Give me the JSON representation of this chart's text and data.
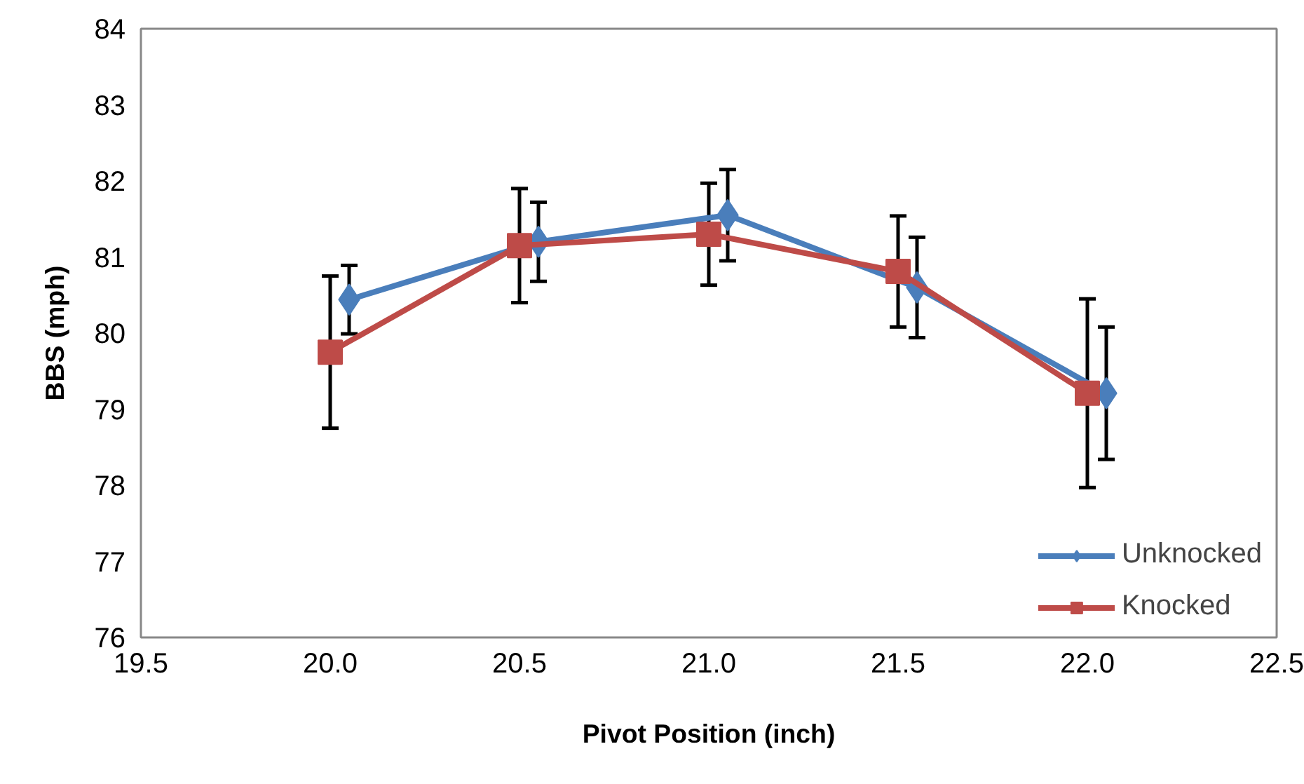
{
  "chart_data": {
    "type": "line",
    "xlabel": "Pivot Position (inch)",
    "ylabel": "BBS (mph)",
    "xlim": [
      19.5,
      22.5
    ],
    "xticks": [
      {
        "value": 19.5,
        "label": "19.5"
      },
      {
        "value": 20,
        "label": "20.0"
      },
      {
        "value": 20.5,
        "label": "20.5"
      },
      {
        "value": 21,
        "label": "21.0"
      },
      {
        "value": 21.5,
        "label": "21.5"
      },
      {
        "value": 22,
        "label": "22.0"
      },
      {
        "value": 22.5,
        "label": "22.5"
      }
    ],
    "ylim": [
      76,
      84
    ],
    "yticks": [
      76,
      77,
      78,
      79,
      80,
      81,
      82,
      83,
      84
    ],
    "grid": false,
    "legend": "bottom right",
    "line_style": "solid",
    "series": [
      {
        "name": "Unknocked",
        "color": "#4a7ebb",
        "marker": "diamond",
        "x": [
          20.05,
          20.55,
          21.05,
          21.55,
          22.05
        ],
        "values": [
          80.44,
          81.2,
          81.55,
          80.6,
          79.21
        ],
        "errors": [
          0.45,
          0.52,
          0.6,
          0.66,
          0.87
        ]
      },
      {
        "name": "Knocked",
        "color": "#be4b48",
        "marker": "square",
        "x": [
          20.0,
          20.5,
          21.0,
          21.5,
          22.0
        ],
        "values": [
          79.75,
          81.15,
          81.3,
          80.81,
          79.21
        ],
        "errors": [
          1.0,
          0.75,
          0.67,
          0.73,
          1.24
        ]
      }
    ]
  }
}
